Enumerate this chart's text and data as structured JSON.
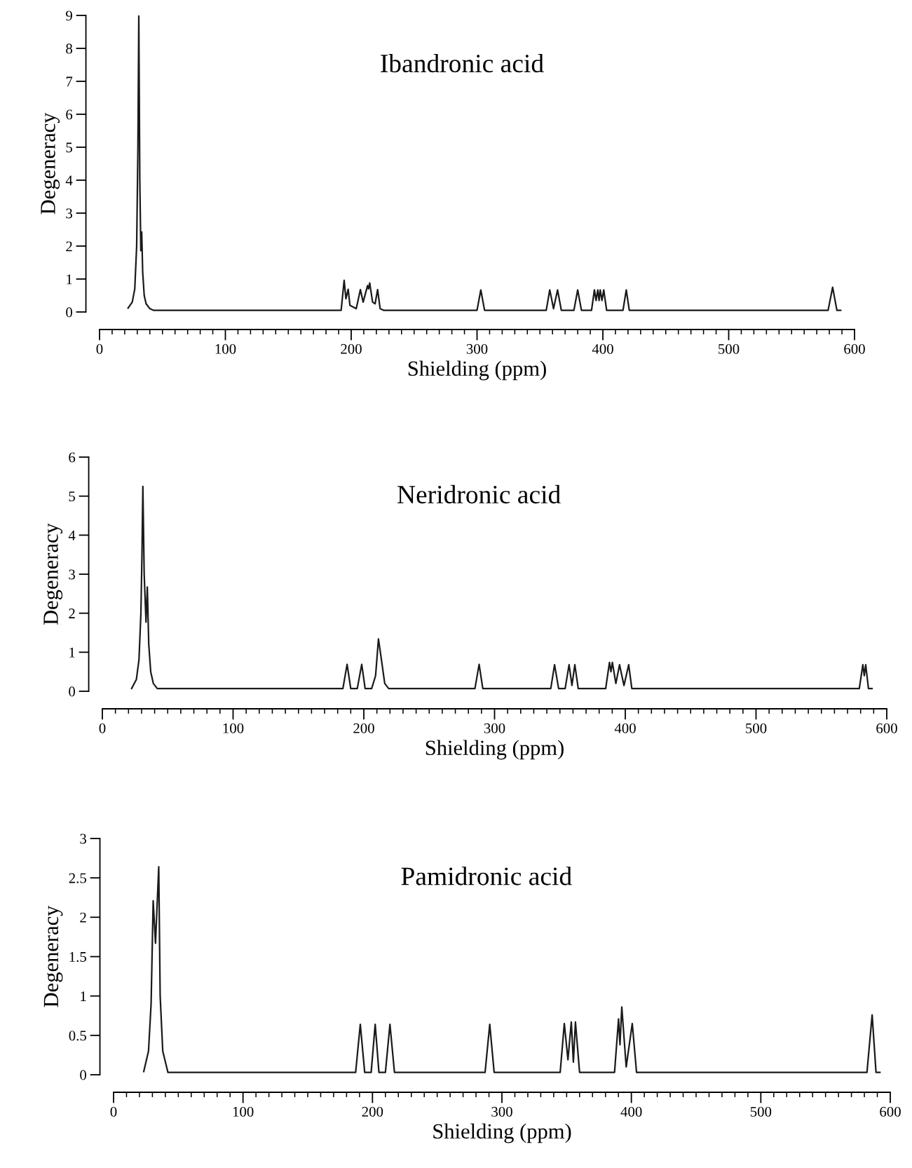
{
  "chart_data": [
    {
      "type": "line",
      "title": "Ibandronic acid",
      "xlabel": "Shielding (ppm)",
      "ylabel": "Degeneracy",
      "xlim": [
        0,
        600
      ],
      "ylim": [
        0,
        9
      ],
      "xticks": [
        0,
        100,
        200,
        300,
        400,
        500,
        600
      ],
      "yticks": [
        0,
        1,
        2,
        3,
        4,
        5,
        6,
        7,
        8,
        9
      ],
      "marker": "none",
      "line_style": "solid",
      "series": [
        {
          "color": "#1a1a1a",
          "x": [
            22.7,
            26,
            28,
            29.5,
            30.5,
            31.2,
            32,
            32.8,
            33.5,
            34.3,
            35.5,
            37,
            40,
            43,
            192,
            194.4,
            195.8,
            197.6,
            199,
            204,
            207.3,
            209.5,
            213,
            213.8,
            214.7,
            217,
            219,
            221,
            223,
            226,
            300,
            303,
            306,
            355,
            357.8,
            360.8,
            364,
            367,
            377,
            380,
            383,
            391,
            393.3,
            394.6,
            396,
            397,
            397.9,
            399.3,
            400.7,
            403,
            416,
            418.6,
            421,
            579,
            582.6,
            586,
            589
          ],
          "values": [
            0.12,
            0.3,
            0.7,
            2.0,
            5.0,
            9.0,
            4.0,
            1.86,
            2.43,
            1.2,
            0.5,
            0.25,
            0.1,
            0.05,
            0.05,
            0.96,
            0.4,
            0.69,
            0.2,
            0.1,
            0.68,
            0.3,
            0.8,
            0.7,
            0.88,
            0.3,
            0.25,
            0.68,
            0.1,
            0.05,
            0.05,
            0.67,
            0.05,
            0.05,
            0.67,
            0.1,
            0.67,
            0.05,
            0.05,
            0.67,
            0.05,
            0.05,
            0.67,
            0.35,
            0.67,
            0.35,
            0.67,
            0.35,
            0.67,
            0.05,
            0.05,
            0.67,
            0.05,
            0.05,
            0.75,
            0.05,
            0.05
          ]
        }
      ]
    },
    {
      "type": "line",
      "title": "Neridronic acid",
      "xlabel": "Shielding (ppm)",
      "ylabel": "Degeneracy",
      "xlim": [
        0,
        600
      ],
      "ylim": [
        0,
        6
      ],
      "xticks": [
        0,
        100,
        200,
        300,
        400,
        500,
        600
      ],
      "yticks": [
        0,
        1,
        2,
        3,
        4,
        5,
        6
      ],
      "marker": "none",
      "line_style": "solid",
      "series": [
        {
          "color": "#1a1a1a",
          "x": [
            22.4,
            26,
            28,
            29.5,
            30.3,
            31,
            32,
            33.4,
            34.4,
            35.5,
            37,
            39,
            42,
            184,
            187.2,
            190,
            195,
            198.4,
            201,
            206,
            209,
            211.2,
            213.5,
            216,
            219,
            285,
            288.2,
            291,
            343,
            345.9,
            349,
            354,
            357,
            359.2,
            361.4,
            364,
            385,
            387.9,
            389,
            390.1,
            392.8,
            395.6,
            399,
            402.6,
            405,
            579,
            581.7,
            582.8,
            583.9,
            586,
            588.7
          ],
          "values": [
            0.07,
            0.3,
            0.8,
            2.0,
            3.5,
            5.25,
            3.0,
            1.77,
            2.67,
            1.2,
            0.5,
            0.2,
            0.07,
            0.07,
            0.69,
            0.07,
            0.07,
            0.69,
            0.07,
            0.07,
            0.4,
            1.34,
            0.8,
            0.2,
            0.07,
            0.07,
            0.69,
            0.07,
            0.07,
            0.68,
            0.07,
            0.07,
            0.68,
            0.15,
            0.68,
            0.07,
            0.07,
            0.74,
            0.5,
            0.74,
            0.2,
            0.68,
            0.15,
            0.68,
            0.07,
            0.07,
            0.68,
            0.4,
            0.68,
            0.07,
            0.07
          ]
        }
      ]
    },
    {
      "type": "line",
      "title": "Pamidronic acid",
      "xlabel": "Shielding (ppm)",
      "ylabel": "Degeneracy",
      "xlim": [
        0,
        600
      ],
      "ylim": [
        0,
        3
      ],
      "xticks": [
        0,
        100,
        200,
        300,
        400,
        500,
        600
      ],
      "yticks": [
        0,
        0.5,
        1,
        1.5,
        2,
        2.5,
        3
      ],
      "marker": "none",
      "line_style": "solid",
      "series": [
        {
          "color": "#1a1a1a",
          "x": [
            23.3,
            27,
            29,
            30.6,
            32.4,
            34.9,
            36,
            38,
            42,
            187,
            190.6,
            194,
            199,
            202.1,
            205,
            210,
            213.5,
            217,
            287,
            290.6,
            294,
            345,
            348.2,
            351,
            353.6,
            355.2,
            356.8,
            360,
            387,
            390.1,
            391.2,
            392.6,
            396,
            400.7,
            404,
            582,
            586,
            589,
            592
          ],
          "values": [
            0.04,
            0.3,
            0.9,
            2.21,
            1.67,
            2.64,
            1.0,
            0.3,
            0.03,
            0.03,
            0.64,
            0.03,
            0.03,
            0.64,
            0.03,
            0.03,
            0.64,
            0.03,
            0.03,
            0.64,
            0.03,
            0.03,
            0.65,
            0.19,
            0.67,
            0.16,
            0.67,
            0.03,
            0.03,
            0.71,
            0.38,
            0.86,
            0.1,
            0.65,
            0.03,
            0.03,
            0.76,
            0.03,
            0.03
          ]
        }
      ]
    }
  ]
}
